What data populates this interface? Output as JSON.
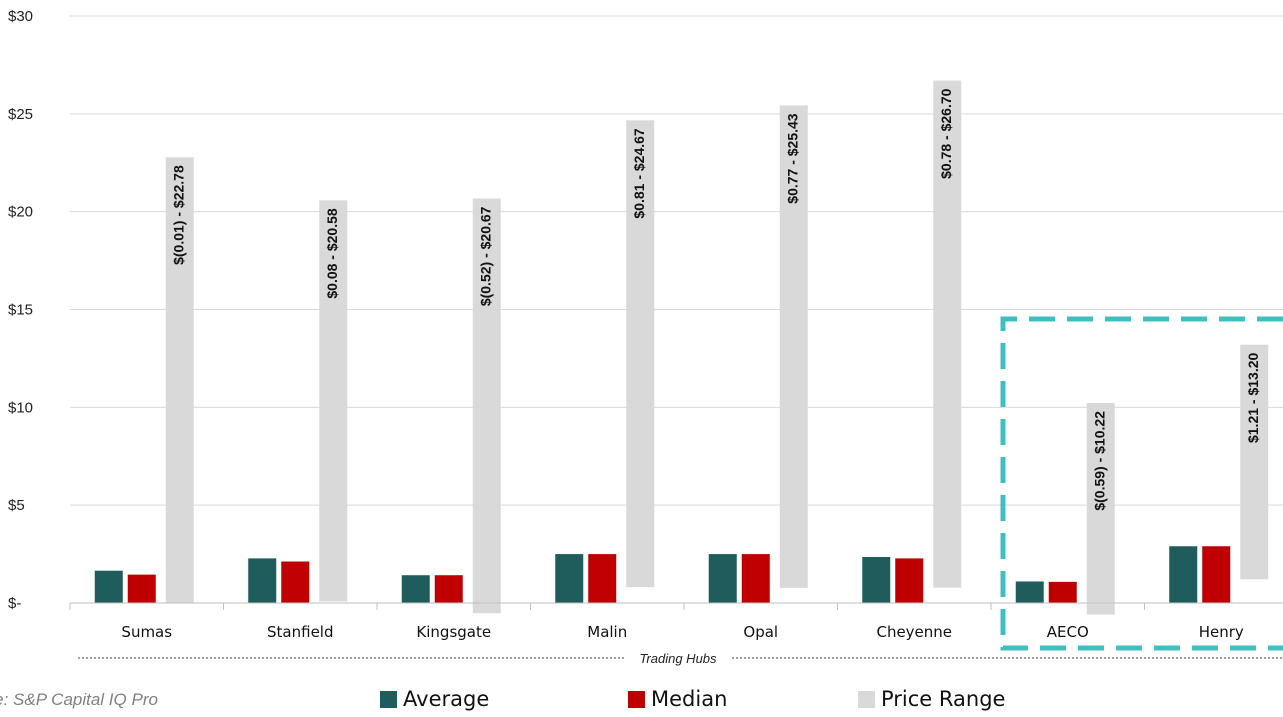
{
  "chart_data": {
    "type": "bar",
    "categories": [
      "Sumas",
      "Stanfield",
      "Kingsgate",
      "Malin",
      "Opal",
      "Cheyenne",
      "AECO",
      "Henry"
    ],
    "series": [
      {
        "name": "Average",
        "values": [
          1.65,
          2.28,
          1.42,
          2.5,
          2.5,
          2.35,
          1.1,
          2.9
        ]
      },
      {
        "name": "Median",
        "values": [
          1.45,
          2.12,
          1.42,
          2.5,
          2.5,
          2.28,
          1.08,
          2.9
        ]
      }
    ],
    "price_range": {
      "name": "Price Range",
      "low": [
        -0.01,
        0.08,
        -0.52,
        0.81,
        0.77,
        0.78,
        -0.59,
        1.21
      ],
      "high": [
        22.78,
        20.58,
        20.67,
        24.67,
        25.43,
        26.7,
        10.22,
        13.2
      ],
      "labels": [
        "$(0.01) - $22.78",
        "$0.08 - $20.58",
        "$(0.52) - $20.67",
        "$0.81 - $24.67",
        "$0.77 - $25.43",
        "$0.78 - $26.70",
        "$(0.59) - $10.22",
        "$1.21 - $13.20"
      ]
    },
    "y_ticks": [
      {
        "value": 0,
        "label": "$-"
      },
      {
        "value": 5,
        "label": "$5"
      },
      {
        "value": 10,
        "label": "$10"
      },
      {
        "value": 15,
        "label": "$15"
      },
      {
        "value": 20,
        "label": "$20"
      },
      {
        "value": 25,
        "label": "$25"
      },
      {
        "value": 30,
        "label": "$30"
      }
    ],
    "ylim": [
      0,
      30
    ],
    "grid": true,
    "xlabel": "Trading Hubs",
    "highlight_categories": [
      "AECO",
      "Henry"
    ],
    "legend_position": "bottom"
  },
  "colors": {
    "average": "#1f5c5c",
    "median": "#c00000",
    "price_range": "#d9d9d9",
    "grid": "#d9d9d9",
    "highlight": "#3fbfbf"
  },
  "source": "rce: S&P Capital IQ Pro",
  "legend": {
    "average": "Average",
    "median": "Median",
    "price_range": "Price Range"
  }
}
